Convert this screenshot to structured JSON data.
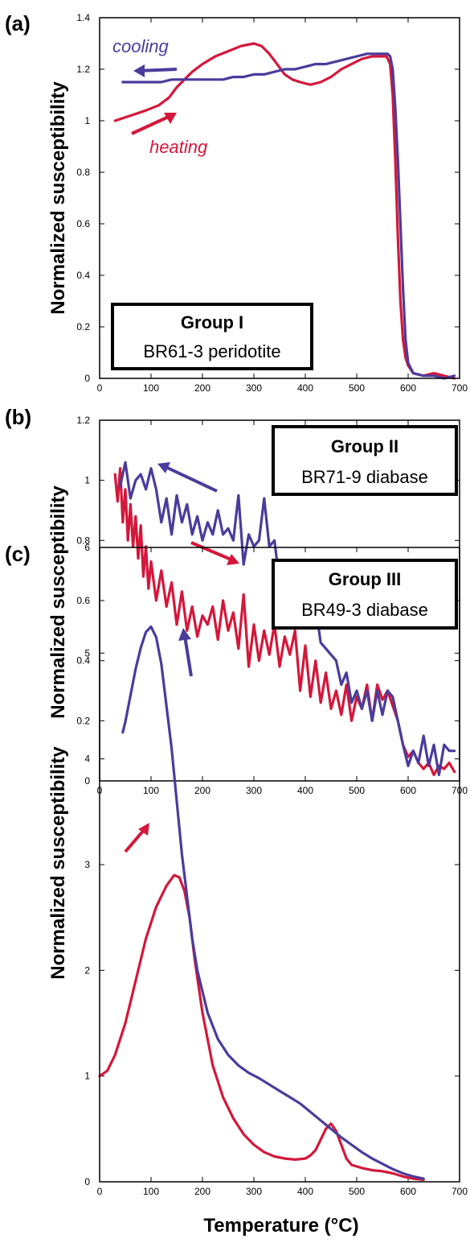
{
  "colors": {
    "heating": "#d4173a",
    "cooling": "#4a3c9c",
    "axis": "#000000"
  },
  "xlabel": "Temperature (°C)",
  "chart_data": [
    {
      "panel": "(a)",
      "type": "line",
      "ylabel": "Normalized susceptibility",
      "xlim": [
        0,
        700
      ],
      "ylim": [
        0,
        1.4
      ],
      "xticks": [
        0,
        100,
        200,
        300,
        400,
        500,
        600,
        700
      ],
      "yticks": [
        0,
        0.2,
        0.4,
        0.6,
        0.8,
        1,
        1.2,
        1.4
      ],
      "legend_box": {
        "title": "Group I",
        "subtitle": "BR61-3 peridotite",
        "placement": "bottom-left"
      },
      "annotations": [
        {
          "text": "cooling",
          "color": "cooling"
        },
        {
          "text": "heating",
          "color": "heating"
        }
      ],
      "series": [
        {
          "key": "heating",
          "x": [
            30,
            60,
            90,
            115,
            135,
            150,
            165,
            180,
            200,
            225,
            250,
            275,
            300,
            315,
            330,
            345,
            360,
            375,
            390,
            410,
            430,
            450,
            470,
            490,
            510,
            530,
            550,
            558,
            565,
            570,
            575,
            580,
            585,
            590,
            595,
            600,
            610,
            630,
            650,
            670,
            690
          ],
          "y": [
            1.0,
            1.02,
            1.04,
            1.06,
            1.09,
            1.13,
            1.16,
            1.19,
            1.22,
            1.25,
            1.27,
            1.29,
            1.3,
            1.29,
            1.26,
            1.22,
            1.18,
            1.16,
            1.15,
            1.14,
            1.15,
            1.17,
            1.2,
            1.22,
            1.24,
            1.25,
            1.25,
            1.25,
            1.22,
            1.1,
            0.85,
            0.55,
            0.3,
            0.15,
            0.08,
            0.05,
            0.02,
            0.01,
            0.02,
            0.01,
            0.0
          ]
        },
        {
          "key": "cooling",
          "x": [
            690,
            670,
            650,
            630,
            610,
            600,
            595,
            590,
            585,
            580,
            575,
            570,
            565,
            560,
            540,
            520,
            500,
            480,
            460,
            440,
            420,
            400,
            380,
            360,
            340,
            320,
            300,
            280,
            260,
            240,
            220,
            200,
            180,
            160,
            140,
            120,
            100,
            80,
            60,
            45
          ],
          "y": [
            0.01,
            0.0,
            0.01,
            0.01,
            0.02,
            0.06,
            0.15,
            0.35,
            0.6,
            0.85,
            1.05,
            1.2,
            1.25,
            1.26,
            1.26,
            1.26,
            1.25,
            1.24,
            1.23,
            1.22,
            1.22,
            1.21,
            1.2,
            1.2,
            1.19,
            1.18,
            1.18,
            1.17,
            1.17,
            1.16,
            1.16,
            1.16,
            1.16,
            1.16,
            1.16,
            1.15,
            1.15,
            1.15,
            1.15,
            1.15
          ]
        }
      ]
    },
    {
      "panel": "(b)",
      "type": "line",
      "ylabel": "Normalized susceptibility",
      "xlim": [
        0,
        700
      ],
      "ylim": [
        0,
        1.2
      ],
      "xticks": [
        0,
        100,
        200,
        300,
        400,
        500,
        600,
        700
      ],
      "yticks": [
        0,
        0.2,
        0.4,
        0.6,
        0.8,
        1,
        1.2
      ],
      "legend_box": {
        "title": "Group II",
        "subtitle": "BR71-9 diabase",
        "placement": "top-right"
      },
      "series": [
        {
          "key": "heating",
          "x": [
            30,
            35,
            40,
            45,
            50,
            55,
            60,
            65,
            70,
            75,
            80,
            85,
            90,
            95,
            100,
            110,
            120,
            130,
            140,
            150,
            160,
            170,
            180,
            190,
            200,
            210,
            220,
            230,
            240,
            250,
            260,
            270,
            280,
            290,
            300,
            310,
            320,
            330,
            340,
            350,
            360,
            370,
            380,
            390,
            400,
            410,
            420,
            430,
            440,
            450,
            460,
            470,
            480,
            490,
            500,
            510,
            520,
            530,
            540,
            550,
            560,
            570,
            580,
            590,
            600,
            610,
            620,
            630,
            640,
            650,
            660,
            670,
            680,
            690
          ],
          "y": [
            1.02,
            0.93,
            1.04,
            0.86,
            0.97,
            0.8,
            0.92,
            0.78,
            0.88,
            0.74,
            0.85,
            0.68,
            0.78,
            0.64,
            0.73,
            0.6,
            0.7,
            0.58,
            0.66,
            0.52,
            0.63,
            0.5,
            0.58,
            0.48,
            0.55,
            0.52,
            0.58,
            0.47,
            0.6,
            0.5,
            0.56,
            0.44,
            0.62,
            0.38,
            0.52,
            0.4,
            0.5,
            0.42,
            0.52,
            0.38,
            0.48,
            0.42,
            0.5,
            0.3,
            0.45,
            0.28,
            0.4,
            0.26,
            0.36,
            0.24,
            0.3,
            0.22,
            0.32,
            0.2,
            0.28,
            0.24,
            0.32,
            0.2,
            0.32,
            0.27,
            0.3,
            0.25,
            0.2,
            0.12,
            0.08,
            0.1,
            0.06,
            0.04,
            0.06,
            0.02,
            0.05,
            0.04,
            0.06,
            0.03
          ]
        },
        {
          "key": "cooling",
          "x": [
            690,
            680,
            670,
            660,
            650,
            640,
            630,
            620,
            610,
            600,
            590,
            580,
            570,
            560,
            550,
            540,
            530,
            520,
            510,
            500,
            490,
            480,
            470,
            460,
            450,
            440,
            430,
            420,
            410,
            400,
            390,
            380,
            370,
            360,
            350,
            340,
            330,
            320,
            310,
            300,
            290,
            280,
            270,
            260,
            250,
            240,
            230,
            220,
            210,
            200,
            190,
            180,
            170,
            160,
            150,
            140,
            130,
            120,
            110,
            100,
            90,
            80,
            70,
            60,
            50,
            40
          ],
          "y": [
            0.1,
            0.1,
            0.12,
            0.02,
            0.12,
            0.05,
            0.15,
            0.06,
            0.1,
            0.05,
            0.12,
            0.2,
            0.28,
            0.3,
            0.22,
            0.3,
            0.2,
            0.3,
            0.24,
            0.3,
            0.26,
            0.36,
            0.32,
            0.4,
            0.42,
            0.44,
            0.46,
            0.58,
            0.62,
            0.66,
            0.6,
            0.64,
            0.7,
            0.72,
            0.66,
            0.8,
            0.78,
            0.94,
            0.8,
            0.78,
            0.82,
            0.72,
            0.95,
            0.8,
            0.84,
            0.82,
            0.9,
            0.82,
            0.86,
            0.8,
            0.88,
            0.82,
            0.92,
            0.86,
            0.95,
            0.82,
            0.94,
            0.86,
            0.97,
            1.04,
            0.97,
            1.02,
            1.0,
            0.94,
            1.06,
            0.98
          ]
        }
      ]
    },
    {
      "panel": "(c)",
      "type": "line",
      "ylabel": "Normalized susceptibility",
      "xlim": [
        0,
        700
      ],
      "ylim": [
        0,
        6
      ],
      "xticks": [
        0,
        100,
        200,
        300,
        400,
        500,
        600,
        700
      ],
      "yticks": [
        0,
        1,
        2,
        3,
        4,
        5,
        6
      ],
      "legend_box": {
        "title": "Group III",
        "subtitle": "BR49-3 diabase",
        "placement": "top-right"
      },
      "series": [
        {
          "key": "heating",
          "x": [
            0,
            15,
            30,
            50,
            70,
            90,
            110,
            130,
            145,
            155,
            165,
            175,
            185,
            200,
            220,
            240,
            260,
            280,
            300,
            320,
            340,
            360,
            380,
            400,
            410,
            420,
            430,
            440,
            450,
            460,
            470,
            480,
            490,
            510,
            530,
            550,
            570,
            590,
            610,
            630
          ],
          "y": [
            1.0,
            1.05,
            1.2,
            1.5,
            1.9,
            2.3,
            2.6,
            2.8,
            2.9,
            2.88,
            2.75,
            2.5,
            2.1,
            1.6,
            1.1,
            0.8,
            0.6,
            0.45,
            0.35,
            0.28,
            0.24,
            0.22,
            0.21,
            0.22,
            0.25,
            0.3,
            0.4,
            0.5,
            0.55,
            0.48,
            0.35,
            0.22,
            0.16,
            0.13,
            0.11,
            0.1,
            0.08,
            0.05,
            0.03,
            0.02
          ]
        },
        {
          "key": "cooling",
          "x": [
            630,
            610,
            590,
            570,
            550,
            530,
            510,
            490,
            470,
            450,
            430,
            410,
            390,
            370,
            350,
            330,
            310,
            290,
            270,
            250,
            230,
            210,
            200,
            190,
            180,
            170,
            160,
            150,
            140,
            130,
            120,
            110,
            100,
            90,
            80,
            70,
            60,
            50,
            45
          ],
          "y": [
            0.03,
            0.05,
            0.08,
            0.12,
            0.17,
            0.22,
            0.28,
            0.35,
            0.42,
            0.5,
            0.58,
            0.66,
            0.74,
            0.8,
            0.86,
            0.92,
            0.98,
            1.03,
            1.1,
            1.2,
            1.35,
            1.6,
            1.8,
            2.0,
            2.3,
            2.7,
            3.1,
            3.6,
            4.1,
            4.5,
            4.9,
            5.15,
            5.25,
            5.2,
            5.05,
            4.85,
            4.6,
            4.35,
            4.25
          ]
        }
      ]
    }
  ]
}
